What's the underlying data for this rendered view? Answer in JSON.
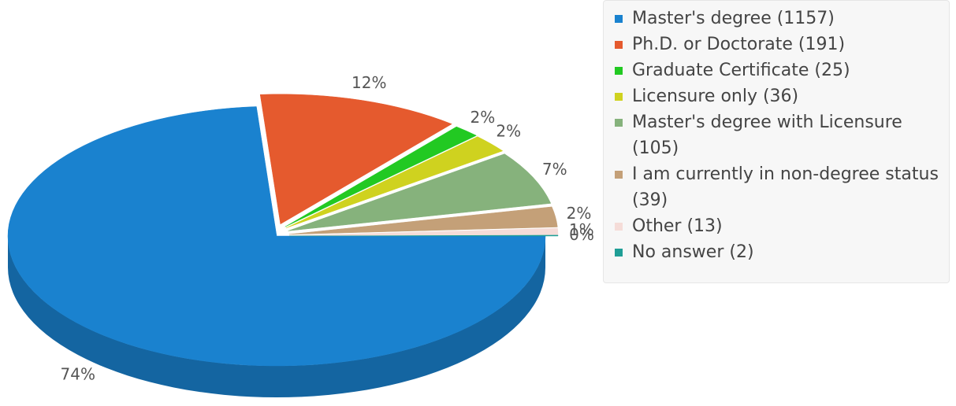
{
  "chart_data": {
    "type": "pie",
    "categories": [
      "Master's degree (1157)",
      "Ph.D. or Doctorate (191)",
      "Graduate Certificate (25)",
      "Licensure only (36)",
      "Master's degree with Licensure (105)",
      "I am currently in non-degree status (39)",
      "Other (13)",
      "No answer (2)"
    ],
    "values": [
      73.8,
      12.2,
      1.6,
      2.3,
      6.7,
      2.5,
      0.8,
      0.1
    ],
    "value_labels": [
      "74%",
      "12%",
      "2%",
      "2%",
      "7%",
      "2%",
      "1%",
      "0%"
    ],
    "colors": [
      "#1a82cf",
      "#e55a2e",
      "#22c922",
      "#cfd21f",
      "#86b27c",
      "#c4a078",
      "#f5dcd8",
      "#1f9e96"
    ],
    "legend": "right"
  }
}
